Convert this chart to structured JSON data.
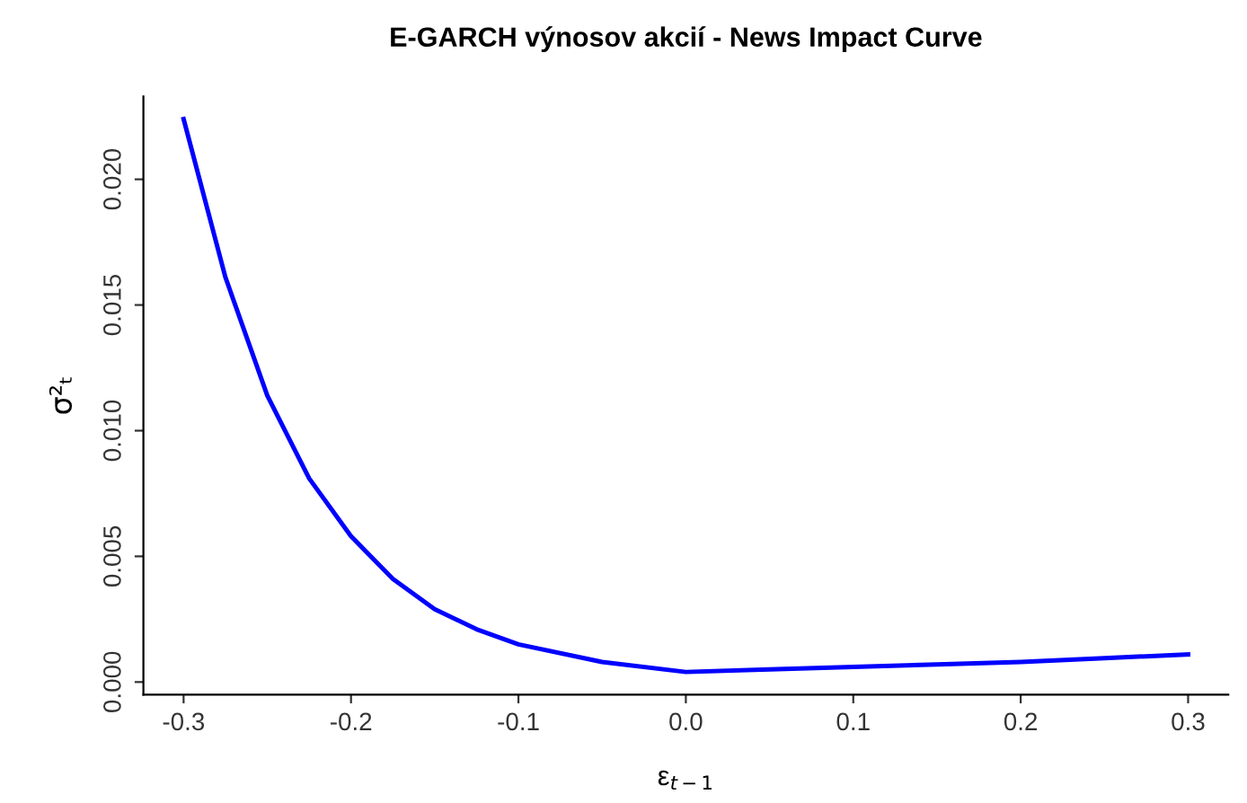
{
  "chart_data": {
    "type": "line",
    "title": "E-GARCH výnosov akcií - News Impact Curve",
    "xlabel": "ε$_{t−1}$",
    "ylabel": "σ²ₜ",
    "x": [
      -0.3,
      -0.275,
      -0.25,
      -0.225,
      -0.2,
      -0.175,
      -0.15,
      -0.125,
      -0.1,
      -0.05,
      0.0,
      0.05,
      0.1,
      0.15,
      0.2,
      0.25,
      0.3
    ],
    "series": [
      {
        "color": "#0000ff",
        "values": [
          0.0224,
          0.0161,
          0.0114,
          0.0081,
          0.0058,
          0.0041,
          0.0029,
          0.0021,
          0.0015,
          0.0008,
          0.0004,
          0.0005,
          0.0006,
          0.0007,
          0.0008,
          0.00095,
          0.0011
        ]
      }
    ],
    "xlim": [
      -0.324,
      0.324
    ],
    "ylim": [
      -0.0005,
      0.0233
    ],
    "xticks": [
      -0.3,
      -0.2,
      -0.1,
      {
        "value": 0,
        "label": "0.0"
      },
      0.1,
      0.2,
      0.3
    ],
    "yticks": [
      {
        "value": 0,
        "label": "0.000"
      },
      {
        "value": 0.005,
        "label": "0.005"
      },
      {
        "value": 0.01,
        "label": "0.010"
      },
      {
        "value": 0.015,
        "label": "0.015"
      },
      {
        "value": 0.02,
        "label": "0.020"
      }
    ],
    "grid": false,
    "legend": false,
    "line_style": "solid",
    "marker": "none"
  }
}
